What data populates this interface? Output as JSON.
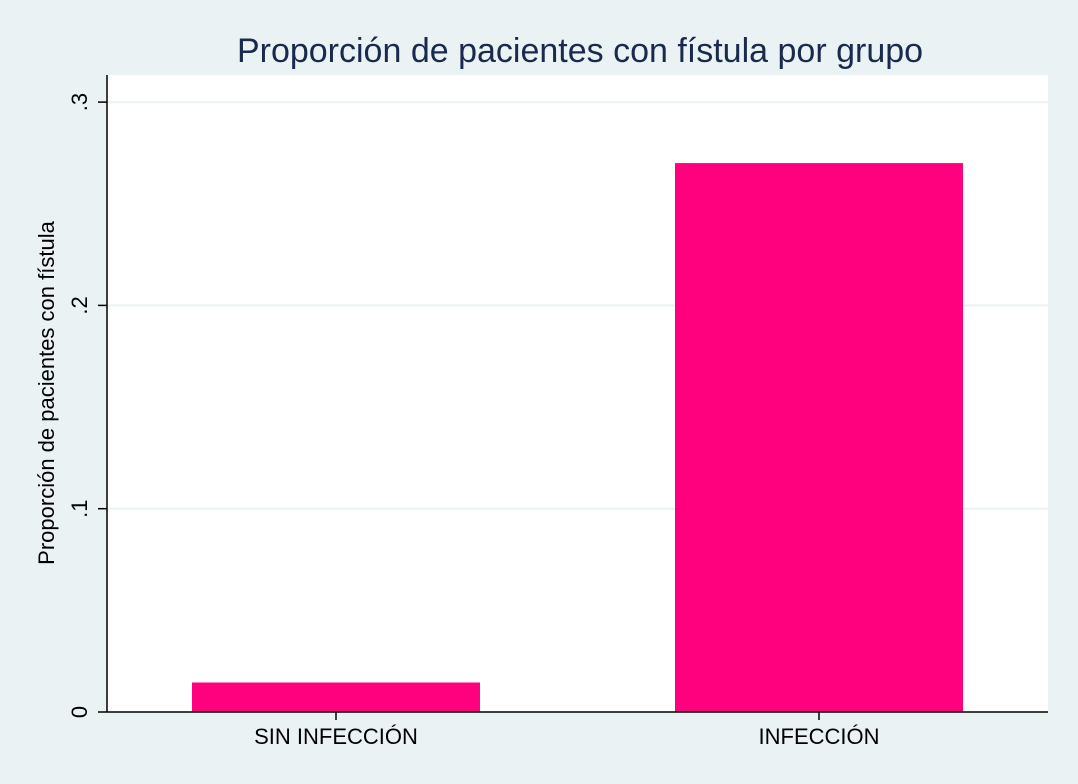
{
  "chart_data": {
    "type": "bar",
    "title": "Proporción de pacientes con fístula por grupo",
    "xlabel": "",
    "ylabel": "Proporción de pacientes con fístula",
    "categories": [
      "SIN INFECCIÓN",
      "INFECCIÓN"
    ],
    "values": [
      0.0145,
      0.27
    ],
    "ylim": [
      0,
      0.315
    ],
    "yticks": [
      0,
      0.1,
      0.2,
      0.3
    ],
    "ytick_labels": [
      "0",
      ".1",
      ".2",
      ".3"
    ],
    "grid": true,
    "colors": {
      "bar": "#ff007f",
      "background": "#eaf2f3",
      "plot": "#ffffff",
      "title": "#1a2a4f"
    }
  }
}
